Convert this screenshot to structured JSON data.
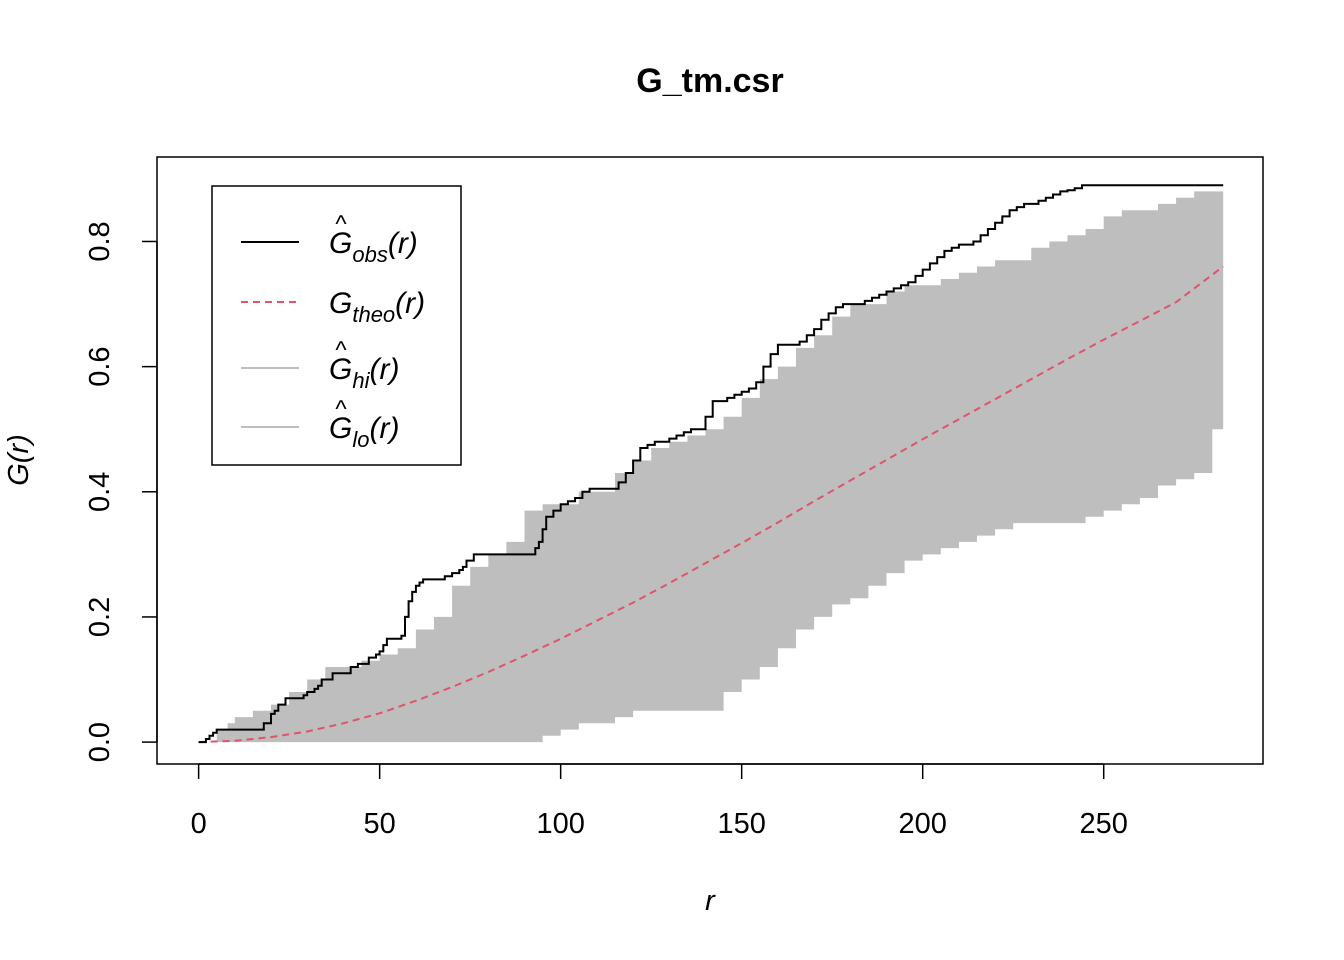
{
  "chart_data": {
    "type": "line",
    "title": "G_tm.csr",
    "xlabel": "r",
    "ylabel": "G(r)",
    "xlim": [
      -11.5,
      294
    ],
    "ylim": [
      -0.035,
      0.935
    ],
    "x_ticks": [
      "0",
      "50",
      "100",
      "150",
      "200",
      "250"
    ],
    "y_ticks": [
      "0.0",
      "0.2",
      "0.4",
      "0.6",
      "0.8"
    ],
    "x_tick_values": [
      0,
      50,
      100,
      150,
      200,
      250
    ],
    "y_tick_values": [
      0,
      0.2,
      0.4,
      0.6,
      0.8
    ],
    "legend_position": "top-left",
    "legend": [
      {
        "base": "G",
        "hat": true,
        "sub": "obs",
        "arg": "(r)",
        "style": "solid",
        "color": "#000000"
      },
      {
        "base": "G",
        "hat": false,
        "sub": "theo",
        "arg": "(r)",
        "style": "dashed",
        "color": "#DF536B"
      },
      {
        "base": "G",
        "hat": true,
        "sub": "hi",
        "arg": "(r)",
        "style": "solid",
        "color": "#BEBEBE"
      },
      {
        "base": "G",
        "hat": true,
        "sub": "lo",
        "arg": "(r)",
        "style": "solid",
        "color": "#BEBEBE"
      }
    ],
    "series": [
      {
        "name": "obs",
        "color": "#000000",
        "style": "solid",
        "x": [
          0,
          2,
          3,
          4,
          5,
          16,
          18,
          20,
          21,
          22,
          24,
          27,
          29,
          30,
          32,
          33,
          34,
          36,
          37,
          38,
          42,
          44,
          47,
          49,
          50,
          51,
          52,
          54,
          56,
          57,
          58,
          59,
          60,
          61,
          62,
          64,
          66,
          68,
          70,
          72,
          73,
          74,
          76,
          78,
          80,
          82,
          84,
          86,
          88,
          90,
          92,
          93,
          94,
          95,
          96,
          98,
          100,
          102,
          104,
          106,
          108,
          110,
          112,
          114,
          116,
          118,
          120,
          122,
          124,
          126,
          128,
          130,
          132,
          134,
          136,
          138,
          140,
          142,
          144,
          146,
          148,
          150,
          152,
          154,
          156,
          158,
          160,
          162,
          164,
          166,
          168,
          170,
          172,
          174,
          176,
          178,
          180,
          182,
          184,
          186,
          188,
          190,
          192,
          194,
          196,
          198,
          200,
          202,
          204,
          206,
          208,
          210,
          212,
          214,
          216,
          218,
          220,
          222,
          224,
          226,
          228,
          230,
          232,
          234,
          236,
          238,
          240,
          242,
          244,
          250,
          260,
          270,
          283
        ],
        "y": [
          0,
          0.005,
          0.01,
          0.015,
          0.02,
          0.02,
          0.03,
          0.045,
          0.05,
          0.06,
          0.07,
          0.07,
          0.075,
          0.08,
          0.085,
          0.09,
          0.1,
          0.1,
          0.11,
          0.11,
          0.12,
          0.125,
          0.135,
          0.14,
          0.145,
          0.155,
          0.165,
          0.165,
          0.17,
          0.2,
          0.225,
          0.24,
          0.25,
          0.255,
          0.26,
          0.26,
          0.26,
          0.265,
          0.27,
          0.275,
          0.28,
          0.29,
          0.3,
          0.3,
          0.3,
          0.3,
          0.3,
          0.3,
          0.3,
          0.3,
          0.3,
          0.31,
          0.32,
          0.34,
          0.36,
          0.37,
          0.38,
          0.385,
          0.39,
          0.4,
          0.405,
          0.405,
          0.405,
          0.405,
          0.415,
          0.43,
          0.45,
          0.47,
          0.475,
          0.48,
          0.48,
          0.485,
          0.49,
          0.495,
          0.5,
          0.5,
          0.52,
          0.545,
          0.545,
          0.55,
          0.555,
          0.56,
          0.565,
          0.575,
          0.6,
          0.62,
          0.635,
          0.635,
          0.635,
          0.64,
          0.65,
          0.66,
          0.675,
          0.685,
          0.695,
          0.7,
          0.7,
          0.7,
          0.705,
          0.71,
          0.715,
          0.72,
          0.725,
          0.73,
          0.735,
          0.745,
          0.755,
          0.765,
          0.775,
          0.785,
          0.79,
          0.795,
          0.795,
          0.8,
          0.81,
          0.82,
          0.83,
          0.84,
          0.85,
          0.855,
          0.86,
          0.86,
          0.865,
          0.87,
          0.875,
          0.88,
          0.882,
          0.885,
          0.89,
          0.89,
          0.89,
          0.89,
          0.89
        ]
      },
      {
        "name": "theo",
        "color": "#DF536B",
        "style": "dashed",
        "x": [
          0,
          10,
          20,
          30,
          40,
          50,
          60,
          70,
          80,
          90,
          100,
          110,
          120,
          130,
          140,
          150,
          160,
          170,
          180,
          190,
          200,
          210,
          220,
          230,
          240,
          250,
          260,
          270,
          283
        ],
        "y": [
          0,
          0.002,
          0.008,
          0.017,
          0.03,
          0.046,
          0.066,
          0.088,
          0.112,
          0.138,
          0.165,
          0.194,
          0.223,
          0.254,
          0.286,
          0.318,
          0.351,
          0.385,
          0.418,
          0.451,
          0.484,
          0.516,
          0.548,
          0.58,
          0.612,
          0.643,
          0.673,
          0.703,
          0.76
        ]
      },
      {
        "name": "hi",
        "color": "#BEBEBE",
        "style": "band-upper",
        "x": [
          0,
          5,
          8,
          10,
          15,
          20,
          25,
          30,
          35,
          40,
          45,
          50,
          55,
          60,
          65,
          70,
          75,
          80,
          85,
          90,
          95,
          100,
          105,
          110,
          115,
          120,
          125,
          130,
          135,
          140,
          145,
          150,
          155,
          160,
          165,
          170,
          175,
          180,
          185,
          190,
          195,
          200,
          205,
          210,
          215,
          220,
          225,
          230,
          235,
          240,
          245,
          250,
          255,
          260,
          265,
          270,
          275,
          283
        ],
        "y": [
          0,
          0.02,
          0.03,
          0.04,
          0.05,
          0.06,
          0.08,
          0.1,
          0.12,
          0.12,
          0.13,
          0.14,
          0.15,
          0.18,
          0.2,
          0.25,
          0.28,
          0.3,
          0.32,
          0.37,
          0.38,
          0.38,
          0.4,
          0.4,
          0.43,
          0.45,
          0.47,
          0.48,
          0.49,
          0.5,
          0.52,
          0.55,
          0.58,
          0.6,
          0.63,
          0.65,
          0.68,
          0.7,
          0.7,
          0.72,
          0.73,
          0.73,
          0.74,
          0.75,
          0.76,
          0.77,
          0.77,
          0.79,
          0.8,
          0.81,
          0.82,
          0.84,
          0.85,
          0.85,
          0.86,
          0.87,
          0.88,
          0.9
        ]
      },
      {
        "name": "lo",
        "color": "#BEBEBE",
        "style": "band-lower",
        "x": [
          0,
          20,
          40,
          60,
          80,
          90,
          95,
          100,
          105,
          110,
          115,
          120,
          125,
          130,
          135,
          140,
          145,
          150,
          155,
          160,
          165,
          170,
          175,
          180,
          185,
          190,
          195,
          200,
          205,
          210,
          215,
          220,
          225,
          230,
          235,
          240,
          245,
          250,
          255,
          260,
          265,
          270,
          275,
          280,
          283
        ],
        "y": [
          0,
          0,
          0,
          0,
          0,
          0,
          0.01,
          0.02,
          0.03,
          0.03,
          0.04,
          0.05,
          0.05,
          0.05,
          0.05,
          0.05,
          0.08,
          0.1,
          0.12,
          0.15,
          0.18,
          0.2,
          0.22,
          0.23,
          0.25,
          0.27,
          0.29,
          0.3,
          0.31,
          0.32,
          0.33,
          0.34,
          0.35,
          0.35,
          0.35,
          0.35,
          0.36,
          0.37,
          0.38,
          0.39,
          0.41,
          0.42,
          0.43,
          0.5,
          0.5
        ]
      }
    ]
  }
}
